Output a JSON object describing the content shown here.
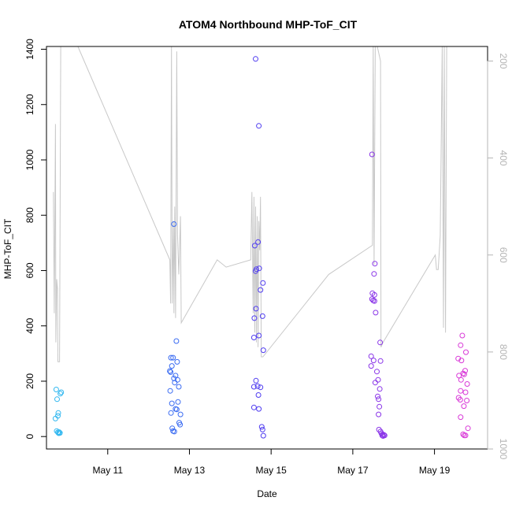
{
  "chart_data": {
    "type": "scatter",
    "title": "ATOM4 Northbound MHP-ToF_CIT",
    "xlabel": "Date",
    "ylabel": "MHP-ToF_CIT",
    "x_unit": "days (May)",
    "xlim": [
      9.5,
      20.3
    ],
    "ylim": [
      -45,
      1410
    ],
    "y_ticks": [
      0,
      200,
      400,
      600,
      800,
      1000,
      1200,
      1400
    ],
    "x_ticks": [
      11,
      13,
      15,
      17,
      19
    ],
    "x_tick_labels": [
      "May 11",
      "May 13",
      "May 15",
      "May 17",
      "May 19"
    ],
    "right_axis": {
      "ticks": [
        200,
        400,
        600,
        800,
        1000
      ],
      "lim": [
        1000,
        170
      ],
      "color": "#b4b4b4"
    },
    "series": [
      {
        "color": "#33b8f0",
        "points": [
          [
            9.74,
            170
          ],
          [
            9.76,
            135
          ],
          [
            9.79,
            85
          ],
          [
            9.78,
            75
          ],
          [
            9.72,
            65
          ],
          [
            9.86,
            160
          ],
          [
            9.84,
            155
          ],
          [
            9.75,
            20
          ],
          [
            9.78,
            15
          ],
          [
            9.8,
            12
          ],
          [
            9.83,
            13
          ],
          [
            9.81,
            16
          ]
        ]
      },
      {
        "color": "#3b6cf2",
        "points": [
          [
            12.62,
            768
          ],
          [
            12.68,
            345
          ],
          [
            12.55,
            285
          ],
          [
            12.6,
            285
          ],
          [
            12.7,
            270
          ],
          [
            12.57,
            255
          ],
          [
            12.52,
            237
          ],
          [
            12.54,
            233
          ],
          [
            12.66,
            220
          ],
          [
            12.62,
            210
          ],
          [
            12.71,
            205
          ],
          [
            12.64,
            195
          ],
          [
            12.74,
            180
          ],
          [
            12.53,
            165
          ],
          [
            12.57,
            120
          ],
          [
            12.72,
            125
          ],
          [
            12.66,
            100
          ],
          [
            12.69,
            98
          ],
          [
            12.55,
            85
          ],
          [
            12.78,
            80
          ],
          [
            12.75,
            50
          ],
          [
            12.77,
            43
          ],
          [
            12.58,
            30
          ],
          [
            12.6,
            20
          ],
          [
            12.63,
            18
          ]
        ]
      },
      {
        "color": "#4f3cf0",
        "points": [
          [
            14.62,
            1365
          ],
          [
            14.7,
            1123
          ],
          [
            14.68,
            703
          ],
          [
            14.6,
            690
          ],
          [
            14.64,
            605
          ],
          [
            14.71,
            608
          ],
          [
            14.62,
            598
          ],
          [
            14.8,
            555
          ],
          [
            14.74,
            530
          ],
          [
            14.63,
            462
          ],
          [
            14.59,
            428
          ],
          [
            14.79,
            435
          ],
          [
            14.58,
            358
          ],
          [
            14.7,
            365
          ],
          [
            14.81,
            312
          ],
          [
            14.63,
            202
          ],
          [
            14.58,
            180
          ],
          [
            14.67,
            182
          ],
          [
            14.74,
            178
          ],
          [
            14.69,
            150
          ],
          [
            14.58,
            105
          ],
          [
            14.7,
            100
          ],
          [
            14.77,
            35
          ],
          [
            14.79,
            25
          ],
          [
            14.81,
            3
          ]
        ]
      },
      {
        "color": "#8a35e8",
        "points": [
          [
            17.47,
            1020
          ],
          [
            17.54,
            625
          ],
          [
            17.52,
            588
          ],
          [
            17.48,
            518
          ],
          [
            17.53,
            512
          ],
          [
            17.47,
            497
          ],
          [
            17.5,
            492
          ],
          [
            17.53,
            490
          ],
          [
            17.56,
            448
          ],
          [
            17.67,
            340
          ],
          [
            17.45,
            290
          ],
          [
            17.51,
            275
          ],
          [
            17.68,
            273
          ],
          [
            17.45,
            255
          ],
          [
            17.59,
            235
          ],
          [
            17.62,
            205
          ],
          [
            17.55,
            195
          ],
          [
            17.66,
            172
          ],
          [
            17.61,
            145
          ],
          [
            17.63,
            135
          ],
          [
            17.65,
            108
          ],
          [
            17.63,
            80
          ],
          [
            17.64,
            25
          ],
          [
            17.68,
            18
          ],
          [
            17.7,
            12
          ],
          [
            17.73,
            8
          ],
          [
            17.76,
            6
          ],
          [
            17.72,
            4
          ],
          [
            17.78,
            4
          ],
          [
            17.74,
            2
          ]
        ]
      },
      {
        "color": "#d93ad8",
        "points": [
          [
            19.68,
            365
          ],
          [
            19.64,
            330
          ],
          [
            19.77,
            305
          ],
          [
            19.58,
            282
          ],
          [
            19.66,
            275
          ],
          [
            19.75,
            238
          ],
          [
            19.7,
            228
          ],
          [
            19.73,
            225
          ],
          [
            19.6,
            220
          ],
          [
            19.65,
            205
          ],
          [
            19.8,
            190
          ],
          [
            19.64,
            165
          ],
          [
            19.76,
            160
          ],
          [
            19.59,
            140
          ],
          [
            19.63,
            133
          ],
          [
            19.79,
            130
          ],
          [
            19.72,
            110
          ],
          [
            19.64,
            70
          ],
          [
            19.82,
            30
          ],
          [
            19.7,
            8
          ],
          [
            19.73,
            4
          ],
          [
            19.76,
            4
          ]
        ]
      }
    ],
    "overlay_line": {
      "color": "#c8c8c8",
      "axis": "right",
      "points": [
        [
          9.67,
          470
        ],
        [
          9.69,
          720
        ],
        [
          9.72,
          330
        ],
        [
          9.73,
          780
        ],
        [
          9.75,
          650
        ],
        [
          9.77,
          670
        ],
        [
          9.78,
          820
        ],
        [
          9.82,
          820
        ],
        [
          9.85,
          170
        ],
        [
          9.9,
          170
        ],
        [
          10.27,
          170
        ],
        [
          12.52,
          610
        ],
        [
          12.54,
          700
        ],
        [
          12.56,
          170
        ],
        [
          12.58,
          700
        ],
        [
          12.61,
          530
        ],
        [
          12.62,
          720
        ],
        [
          12.64,
          500
        ],
        [
          12.66,
          730
        ],
        [
          12.69,
          180
        ],
        [
          12.71,
          560
        ],
        [
          12.74,
          640
        ],
        [
          12.78,
          520
        ],
        [
          12.8,
          740
        ],
        [
          13.68,
          610
        ],
        [
          13.9,
          625
        ],
        [
          14.5,
          610
        ],
        [
          14.53,
          470
        ],
        [
          14.56,
          720
        ],
        [
          14.58,
          480
        ],
        [
          14.6,
          760
        ],
        [
          14.62,
          500
        ],
        [
          14.64,
          780
        ],
        [
          14.66,
          520
        ],
        [
          14.68,
          790
        ],
        [
          14.7,
          530
        ],
        [
          14.72,
          590
        ],
        [
          14.74,
          480
        ],
        [
          14.76,
          810
        ],
        [
          14.8,
          810
        ],
        [
          16.41,
          640
        ],
        [
          17.48,
          580
        ],
        [
          17.5,
          170
        ],
        [
          17.52,
          620
        ],
        [
          17.55,
          170
        ],
        [
          17.6,
          170
        ],
        [
          17.68,
          200
        ],
        [
          17.69,
          790
        ],
        [
          17.74,
          780
        ],
        [
          19.02,
          600
        ],
        [
          19.05,
          630
        ],
        [
          19.09,
          630
        ],
        [
          19.14,
          560
        ],
        [
          19.19,
          170
        ],
        [
          19.22,
          750
        ],
        [
          19.24,
          170
        ],
        [
          19.27,
          760
        ],
        [
          19.3,
          170
        ]
      ]
    }
  }
}
